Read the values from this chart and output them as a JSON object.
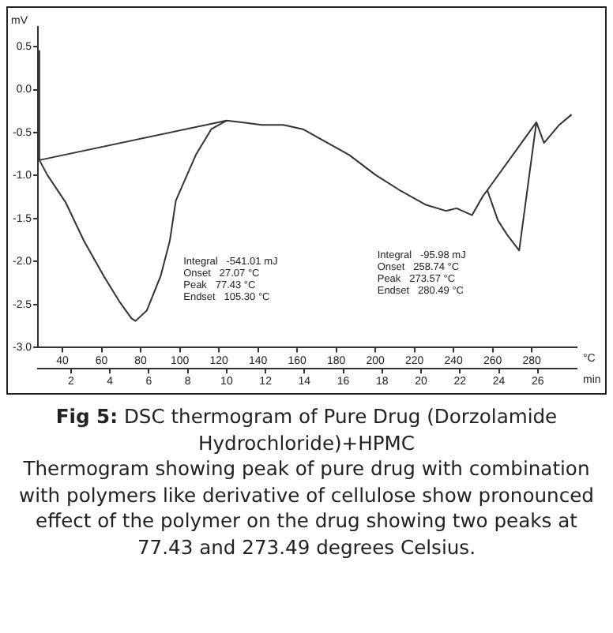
{
  "chart_data": {
    "type": "line",
    "title": "Fig 5: DSC thermogram of Pure Drug (Dorzolamide Hydrochloride)+HPMC",
    "ylabel": "mV",
    "xlabel": "°C",
    "x2label": "min",
    "xlim": [
      27.5,
      303
    ],
    "xticks": [
      40,
      60,
      80,
      100,
      120,
      140,
      160,
      180,
      200,
      220,
      240,
      260,
      280
    ],
    "x2lim": [
      0.3,
      28
    ],
    "x2ticks": [
      2,
      4,
      6,
      8,
      10,
      12,
      14,
      16,
      18,
      20,
      22,
      24,
      26
    ],
    "ylim": [
      -3.0,
      0.73
    ],
    "yticks": [
      {
        "value": 0.5,
        "label": "0.5"
      },
      {
        "value": 0,
        "label": "0.0"
      },
      {
        "value": -0.5,
        "label": "-0.5"
      },
      {
        "value": -1,
        "label": "-1.0"
      },
      {
        "value": -1.5,
        "label": "-1.5"
      },
      {
        "value": -2,
        "label": "-2.0"
      },
      {
        "value": -2.5,
        "label": "-2.5"
      },
      {
        "value": -3,
        "label": "-3.0"
      }
    ],
    "grid": false,
    "legend": false,
    "series": [
      {
        "color": "#333333",
        "x": [
          27.6,
          28.2,
          32.2,
          41.6,
          51,
          61.2,
          69,
          75.3,
          77.4,
          83.1,
          90.2,
          94.9,
          98,
          108.2,
          116.1,
          123.9,
          131.8,
          142,
          153,
          163,
          173.3,
          186.7,
          200,
          212.5,
          225.9,
          236.1,
          241.6,
          249.5,
          255,
          257.3,
          262.7,
          267.5,
          273.6,
          282.4,
          286.3,
          294.1,
          300.4
        ],
        "values": [
          0.45,
          -0.82,
          -0.99,
          -1.31,
          -1.76,
          -2.17,
          -2.46,
          -2.66,
          -2.69,
          -2.57,
          -2.17,
          -1.76,
          -1.29,
          -0.76,
          -0.46,
          -0.36,
          -0.38,
          -0.41,
          -0.41,
          -0.46,
          -0.59,
          -0.76,
          -0.99,
          -1.17,
          -1.34,
          -1.41,
          -1.38,
          -1.46,
          -1.24,
          -1.17,
          -1.52,
          -1.69,
          -1.87,
          -0.38,
          -0.62,
          -0.41,
          -0.29
        ]
      },
      {
        "color": "#333333",
        "x": [
          28.2,
          123.9
        ],
        "values": [
          -0.82,
          -0.36
        ]
      },
      {
        "color": "#333333",
        "x": [
          257.3,
          282.4
        ],
        "values": [
          -1.17,
          -0.38
        ]
      }
    ],
    "annotations": [
      "Integral   -541.01 mJ\nOnset   27.07 °C\nPeak   77.43 °C\nEndset   105.30 °C",
      "Integral   -95.98 mJ\nOnset   258.74 °C\nPeak   273.57 °C\nEndset   280.49 °C",
      "Thermogram showing  peak of pure drug with combination  with polymers like derivative of cellulose show pronounced effect of the polymer on the drug showing two peaks at 77.43 and  273.49 degrees Celsius."
    ]
  }
}
